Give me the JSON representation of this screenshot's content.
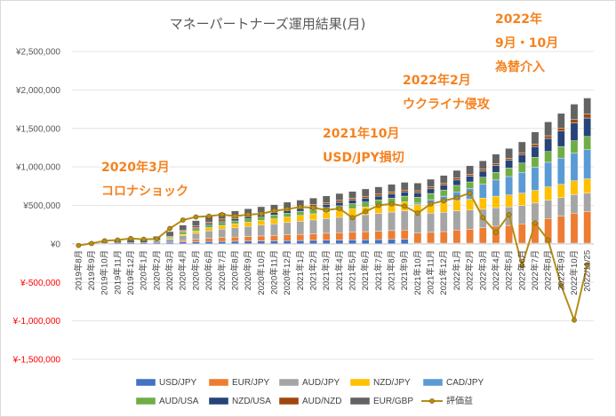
{
  "chart_data": {
    "type": "bar",
    "stacked": true,
    "title": "マネーパートナーズ運用結果(月)",
    "categories": [
      "2019年8月",
      "2019年9月",
      "2019年10月",
      "2019年11月",
      "2019年12月",
      "2020年1月",
      "2020年2月",
      "2020年3月",
      "2020年4月",
      "2020年5月",
      "2020年6月",
      "2020年7月",
      "2020年8月",
      "2020年9月",
      "2020年10月",
      "2020年11月",
      "2020年12月",
      "2021年1月",
      "2021年2月",
      "2021年3月",
      "2021年4月",
      "2021年5月",
      "2021年6月",
      "2021年7月",
      "2021年8月",
      "2021年9月",
      "2021年10月",
      "2021年11月",
      "2021年12月",
      "2022年1月",
      "2022年2月",
      "2022年3月",
      "2022年4月",
      "2022年5月",
      "2022年6月",
      "2022年7月",
      "2022年8月",
      "2022年9月",
      "2022年10月",
      "2022/11/25"
    ],
    "ylim": [
      -1500000,
      2500000
    ],
    "yticks": [
      -1500000,
      -1000000,
      -500000,
      0,
      500000,
      1000000,
      1500000,
      2000000,
      2500000
    ],
    "ytick_labels": [
      "¥-1,500,000",
      "¥-1,000,000",
      "¥-500,000",
      "¥0",
      "¥500,000",
      "¥1,000,000",
      "¥1,500,000",
      "¥2,000,000",
      "¥2,500,000"
    ],
    "series": [
      {
        "name": "USD/JPY",
        "color": "#4472c4",
        "values": [
          5000,
          8000,
          10000,
          12000,
          14000,
          16000,
          18000,
          20000,
          25000,
          28000,
          30000,
          32000,
          34000,
          36000,
          38000,
          40000,
          42000,
          44000,
          46000,
          48000,
          50000,
          52000,
          54000,
          56000,
          58000,
          60000,
          10000,
          10000,
          10000,
          10000,
          10000,
          10000,
          10000,
          10000,
          10000,
          10000,
          10000,
          10000,
          10000,
          10000
        ]
      },
      {
        "name": "EUR/JPY",
        "color": "#ed7d31",
        "values": [
          0,
          0,
          0,
          0,
          0,
          0,
          0,
          0,
          20000,
          30000,
          40000,
          50000,
          55000,
          60000,
          65000,
          70000,
          75000,
          80000,
          85000,
          90000,
          95000,
          100000,
          105000,
          110000,
          115000,
          120000,
          130000,
          140000,
          150000,
          170000,
          180000,
          200000,
          220000,
          230000,
          250000,
          280000,
          320000,
          350000,
          390000,
          410000
        ]
      },
      {
        "name": "AUD/JPY",
        "color": "#a5a5a5",
        "values": [
          0,
          0,
          0,
          0,
          0,
          0,
          20000,
          40000,
          60000,
          80000,
          100000,
          110000,
          120000,
          130000,
          140000,
          150000,
          160000,
          170000,
          180000,
          190000,
          200000,
          210000,
          220000,
          230000,
          240000,
          250000,
          250000,
          250000,
          250000,
          250000,
          250000,
          240000,
          240000,
          240000,
          240000,
          240000,
          240000,
          240000,
          240000,
          240000
        ]
      },
      {
        "name": "NZD/JPY",
        "color": "#ffc000",
        "values": [
          0,
          0,
          0,
          0,
          0,
          0,
          0,
          10000,
          20000,
          30000,
          40000,
          45000,
          50000,
          55000,
          60000,
          65000,
          70000,
          75000,
          80000,
          85000,
          90000,
          95000,
          100000,
          105000,
          110000,
          115000,
          120000,
          125000,
          130000,
          135000,
          140000,
          145000,
          150000,
          155000,
          160000,
          165000,
          170000,
          175000,
          180000,
          185000
        ]
      },
      {
        "name": "CAD/JPY",
        "color": "#5b9bd5",
        "values": [
          0,
          0,
          0,
          0,
          0,
          0,
          0,
          0,
          0,
          0,
          0,
          0,
          0,
          0,
          0,
          0,
          0,
          0,
          0,
          0,
          0,
          0,
          0,
          0,
          0,
          0,
          20000,
          50000,
          80000,
          110000,
          140000,
          180000,
          210000,
          240000,
          270000,
          300000,
          320000,
          340000,
          360000,
          380000
        ]
      },
      {
        "name": "AUD/USA",
        "color": "#70ad47",
        "values": [
          0,
          0,
          0,
          0,
          0,
          0,
          10000,
          20000,
          30000,
          30000,
          35000,
          40000,
          40000,
          45000,
          45000,
          50000,
          50000,
          55000,
          55000,
          60000,
          60000,
          65000,
          65000,
          70000,
          70000,
          75000,
          75000,
          80000,
          80000,
          85000,
          85000,
          90000,
          100000,
          110000,
          120000,
          130000,
          140000,
          150000,
          160000,
          170000
        ]
      },
      {
        "name": "NZD/USA",
        "color": "#264478",
        "values": [
          0,
          0,
          0,
          0,
          0,
          0,
          0,
          0,
          10000,
          15000,
          20000,
          20000,
          25000,
          25000,
          30000,
          30000,
          35000,
          35000,
          40000,
          40000,
          45000,
          45000,
          50000,
          50000,
          55000,
          55000,
          60000,
          60000,
          65000,
          70000,
          75000,
          80000,
          90000,
          100000,
          110000,
          140000,
          170000,
          200000,
          230000,
          240000
        ]
      },
      {
        "name": "AUD/NZD",
        "color": "#9e480e",
        "values": [
          0,
          0,
          0,
          0,
          0,
          0,
          0,
          10000,
          15000,
          20000,
          20000,
          25000,
          25000,
          25000,
          25000,
          25000,
          25000,
          25000,
          25000,
          25000,
          25000,
          25000,
          25000,
          25000,
          25000,
          25000,
          25000,
          25000,
          25000,
          25000,
          25000,
          25000,
          25000,
          25000,
          25000,
          30000,
          35000,
          40000,
          45000,
          50000
        ]
      },
      {
        "name": "EUR/GBP",
        "color": "#636363",
        "values": [
          5000,
          10000,
          15000,
          30000,
          40000,
          45000,
          50000,
          60000,
          65000,
          70000,
          75000,
          80000,
          80000,
          80000,
          80000,
          80000,
          85000,
          85000,
          85000,
          85000,
          90000,
          90000,
          95000,
          95000,
          100000,
          100000,
          100000,
          100000,
          100000,
          100000,
          110000,
          110000,
          120000,
          130000,
          140000,
          160000,
          180000,
          190000,
          200000,
          210000
        ]
      }
    ],
    "line_series": {
      "name": "評価益",
      "color": "#b58d16",
      "values": [
        -20000,
        5000,
        40000,
        50000,
        70000,
        60000,
        65000,
        200000,
        310000,
        350000,
        360000,
        380000,
        360000,
        380000,
        390000,
        430000,
        450000,
        480000,
        470000,
        440000,
        460000,
        340000,
        420000,
        500000,
        520000,
        490000,
        400000,
        520000,
        560000,
        600000,
        660000,
        340000,
        150000,
        380000,
        -280000,
        270000,
        50000,
        -540000,
        -990000,
        -270000
      ]
    },
    "annotations": [
      {
        "lines": [
          "2020年3月",
          "コロナショック"
        ]
      },
      {
        "lines": [
          "2021年10月",
          "USD/JPY損切"
        ]
      },
      {
        "lines": [
          "2022年2月",
          "ウクライナ侵攻"
        ]
      },
      {
        "lines": [
          "2022年",
          "9月・10月",
          "為替介入"
        ]
      }
    ]
  }
}
